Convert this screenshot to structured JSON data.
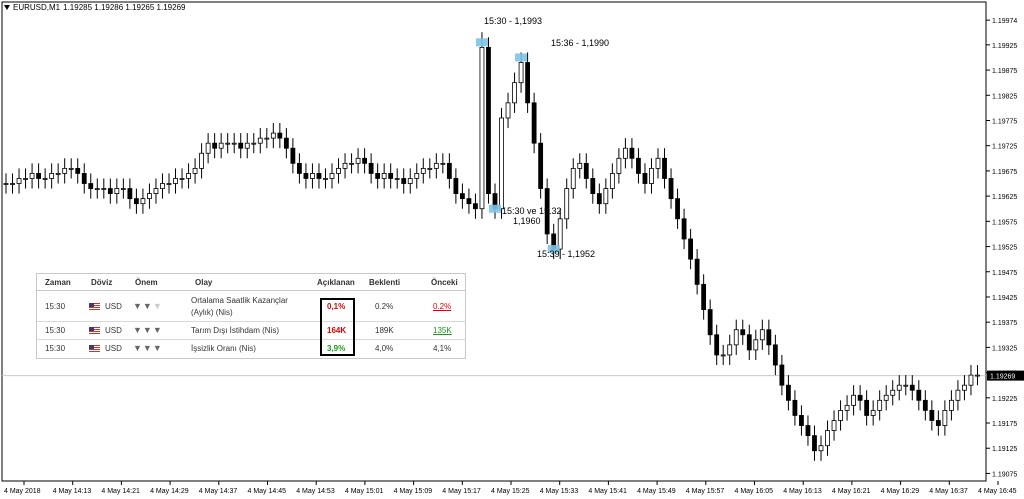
{
  "header": {
    "symbol": "EURUSD,M1",
    "quote": "1.19285 1.19286 1.19265 1.19269"
  },
  "colors": {
    "highlight": "#7ec3e6",
    "up": "#000000",
    "down": "#000000",
    "grid": "#c0c0c0"
  },
  "chart_data": {
    "type": "candlestick",
    "y_ticks": [
      "1.19974",
      "1.19949",
      "1.19923",
      "1.19898",
      "1.19873",
      "1.19848",
      "1.19823",
      "1.19800",
      "1.19775",
      "1.19750",
      "1.19725",
      "1.19700",
      "1.19675",
      "1.19650",
      "1.19625",
      "1.19600",
      "1.19575",
      "1.19550",
      "1.19525",
      "1.19500",
      "1.19475",
      "1.19450",
      "1.19425",
      "1.19400",
      "1.19375",
      "1.19350",
      "1.19325",
      "1.19300",
      "1.19275",
      "1.19250",
      "1.19225",
      "1.19200",
      "1.19175",
      "1.19150",
      "1.19125",
      "1.19100",
      "1.19075"
    ],
    "y_tick_labels": [
      "1.19974",
      "1.19925",
      "1.19875",
      "1.19825",
      "1.19775",
      "1.19725",
      "1.19675",
      "1.19625",
      "1.19575",
      "1.19525",
      "1.19475",
      "1.19425",
      "1.19375",
      "1.19325",
      "1.19275",
      "1.19225",
      "1.19175",
      "1.19125",
      "1.19075"
    ],
    "x_tick_labels": [
      "4 May 2018",
      "4 May 14:13",
      "4 May 14:21",
      "4 May 14:29",
      "4 May 14:37",
      "4 May 14:45",
      "4 May 14:53",
      "4 May 15:01",
      "4 May 15:09",
      "4 May 15:17",
      "4 May 15:25",
      "4 May 15:33",
      "4 May 15:41",
      "4 May 15:49",
      "4 May 15:57",
      "4 May 16:05",
      "4 May 16:13",
      "4 May 16:21",
      "4 May 16:29",
      "4 May 16:37",
      "4 May 16:45"
    ],
    "current_price": "1.19269",
    "ylim": [
      1.1906,
      1.2001
    ],
    "closes": [
      1.1965,
      1.1965,
      1.1966,
      1.1966,
      1.1967,
      1.1966,
      1.1966,
      1.1967,
      1.1967,
      1.1968,
      1.1968,
      1.1967,
      1.1965,
      1.1964,
      1.1964,
      1.1964,
      1.1963,
      1.1964,
      1.1964,
      1.1962,
      1.1961,
      1.1962,
      1.1963,
      1.1964,
      1.1965,
      1.1965,
      1.1966,
      1.1966,
      1.1967,
      1.1968,
      1.1971,
      1.1973,
      1.1972,
      1.1973,
      1.1973,
      1.1973,
      1.1972,
      1.1973,
      1.1973,
      1.1974,
      1.1974,
      1.1975,
      1.1974,
      1.1972,
      1.1969,
      1.1967,
      1.1966,
      1.1967,
      1.1966,
      1.1966,
      1.1967,
      1.1968,
      1.1969,
      1.1969,
      1.197,
      1.1969,
      1.1967,
      1.1966,
      1.1967,
      1.1966,
      1.1966,
      1.1965,
      1.1966,
      1.1967,
      1.1968,
      1.1968,
      1.1969,
      1.1969,
      1.1966,
      1.1963,
      1.1962,
      1.1961,
      1.196,
      1.1992,
      1.1963,
      1.196,
      1.1978,
      1.1981,
      1.1985,
      1.1989,
      1.1981,
      1.1973,
      1.1964,
      1.1955,
      1.1952,
      1.1958,
      1.1964,
      1.1968,
      1.1969,
      1.1966,
      1.1963,
      1.1961,
      1.1964,
      1.1967,
      1.197,
      1.1972,
      1.197,
      1.1967,
      1.1965,
      1.1968,
      1.197,
      1.1966,
      1.1962,
      1.1958,
      1.1954,
      1.195,
      1.1945,
      1.194,
      1.1935,
      1.1931,
      1.1931,
      1.1933,
      1.1936,
      1.1935,
      1.1932,
      1.1934,
      1.1936,
      1.1933,
      1.1929,
      1.1925,
      1.1922,
      1.1919,
      1.1917,
      1.1915,
      1.1912,
      1.1913,
      1.1916,
      1.1918,
      1.192,
      1.1921,
      1.1923,
      1.1922,
      1.1919,
      1.192,
      1.1922,
      1.1923,
      1.1924,
      1.1925,
      1.1925,
      1.1924,
      1.1922,
      1.192,
      1.1918,
      1.1917,
      1.192,
      1.1922,
      1.1924,
      1.1925,
      1.1927,
      1.1927
    ]
  },
  "annotations": {
    "a1": "15:30 - 1,1993",
    "a2": "15:36 - 1,1990",
    "a3_line1": "15:30 ve 15.32",
    "a3_line2": "1,1960",
    "a4": "15:39 - 1,1952"
  },
  "table": {
    "headers": {
      "zaman": "Zaman",
      "doviz": "Döviz",
      "onem": "Önem",
      "olay": "Olay",
      "aciklanan": "Açıklanan",
      "beklenti": "Beklenti",
      "onceki": "Önceki"
    },
    "rows": [
      {
        "zaman": "15:30",
        "doviz": "USD",
        "olay1": "Ortalama Saatlik Kazançlar",
        "olay2": "(Aylık) (Nis)",
        "aciklanan": "0,1%",
        "beklenti": "0.2%",
        "onceki": "0.2%"
      },
      {
        "zaman": "15:30",
        "doviz": "USD",
        "olay1": "Tarım Dışı İstihdam (Nis)",
        "aciklanan": "164K",
        "beklenti": "189K",
        "onceki": "135K"
      },
      {
        "zaman": "15:30",
        "doviz": "USD",
        "olay1": "İşsizlik Oranı (Nis)",
        "aciklanan": "3,9%",
        "beklenti": "4,0%",
        "onceki": "4,1%"
      }
    ]
  }
}
